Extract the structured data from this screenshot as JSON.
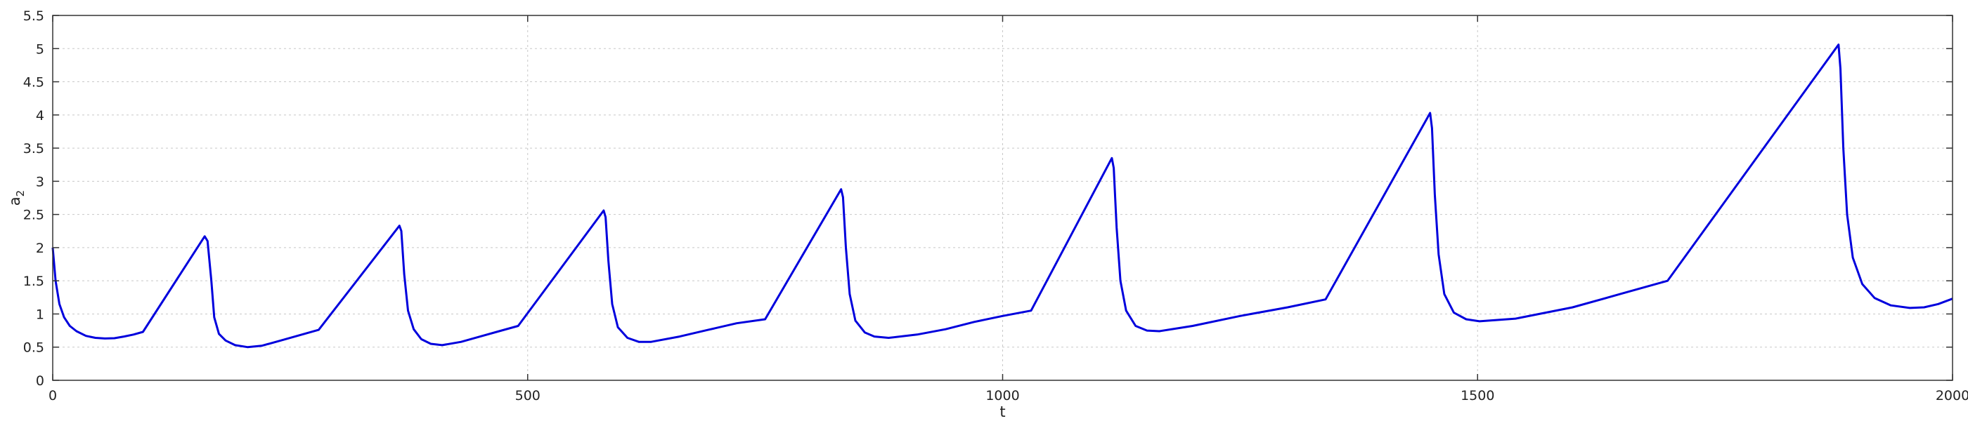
{
  "chart_data": {
    "type": "line",
    "title": "",
    "xlabel": "t",
    "ylabel_base": "a",
    "ylabel_sub": "2",
    "xlim": [
      0,
      2000
    ],
    "ylim": [
      0,
      5.5
    ],
    "x_ticks": [
      0,
      500,
      1000,
      1500,
      2000
    ],
    "x_tick_labels": [
      "0",
      "500",
      "1000",
      "1500",
      "2000"
    ],
    "y_ticks": [
      0,
      0.5,
      1,
      1.5,
      2,
      2.5,
      3,
      3.5,
      4,
      4.5,
      5,
      5.5
    ],
    "y_tick_labels": [
      "0",
      "0.5",
      "1",
      "1.5",
      "2",
      "2.5",
      "3",
      "3.5",
      "4",
      "4.5",
      "5",
      "5.5"
    ],
    "grid": true,
    "line_color": "#0000dd",
    "series": [
      {
        "points": [
          [
            0,
            2.0
          ],
          [
            3,
            1.5
          ],
          [
            7,
            1.15
          ],
          [
            12,
            0.95
          ],
          [
            18,
            0.82
          ],
          [
            25,
            0.74
          ],
          [
            35,
            0.67
          ],
          [
            45,
            0.64
          ],
          [
            55,
            0.63
          ],
          [
            65,
            0.635
          ],
          [
            75,
            0.66
          ],
          [
            85,
            0.69
          ],
          [
            95,
            0.73
          ],
          [
            160,
            2.17
          ],
          [
            163,
            2.1
          ],
          [
            167,
            1.5
          ],
          [
            170,
            0.95
          ],
          [
            175,
            0.7
          ],
          [
            182,
            0.6
          ],
          [
            192,
            0.53
          ],
          [
            205,
            0.5
          ],
          [
            220,
            0.52
          ],
          [
            240,
            0.6
          ],
          [
            260,
            0.68
          ],
          [
            280,
            0.76
          ],
          [
            365,
            2.33
          ],
          [
            367,
            2.25
          ],
          [
            370,
            1.6
          ],
          [
            374,
            1.05
          ],
          [
            380,
            0.77
          ],
          [
            388,
            0.62
          ],
          [
            398,
            0.55
          ],
          [
            410,
            0.53
          ],
          [
            430,
            0.58
          ],
          [
            450,
            0.66
          ],
          [
            470,
            0.74
          ],
          [
            490,
            0.82
          ],
          [
            580,
            2.56
          ],
          [
            582,
            2.46
          ],
          [
            585,
            1.8
          ],
          [
            589,
            1.15
          ],
          [
            595,
            0.8
          ],
          [
            605,
            0.64
          ],
          [
            617,
            0.58
          ],
          [
            630,
            0.58
          ],
          [
            660,
            0.66
          ],
          [
            690,
            0.76
          ],
          [
            720,
            0.86
          ],
          [
            750,
            0.92
          ],
          [
            830,
            2.88
          ],
          [
            832,
            2.76
          ],
          [
            835,
            2.0
          ],
          [
            839,
            1.3
          ],
          [
            845,
            0.9
          ],
          [
            855,
            0.72
          ],
          [
            865,
            0.66
          ],
          [
            880,
            0.64
          ],
          [
            910,
            0.69
          ],
          [
            940,
            0.77
          ],
          [
            970,
            0.88
          ],
          [
            1000,
            0.97
          ],
          [
            1030,
            1.05
          ],
          [
            1115,
            3.35
          ],
          [
            1117,
            3.2
          ],
          [
            1120,
            2.3
          ],
          [
            1124,
            1.5
          ],
          [
            1130,
            1.05
          ],
          [
            1140,
            0.82
          ],
          [
            1152,
            0.75
          ],
          [
            1165,
            0.74
          ],
          [
            1200,
            0.82
          ],
          [
            1250,
            0.97
          ],
          [
            1300,
            1.1
          ],
          [
            1340,
            1.22
          ],
          [
            1450,
            4.03
          ],
          [
            1452,
            3.8
          ],
          [
            1455,
            2.8
          ],
          [
            1459,
            1.9
          ],
          [
            1465,
            1.3
          ],
          [
            1475,
            1.02
          ],
          [
            1488,
            0.92
          ],
          [
            1502,
            0.89
          ],
          [
            1540,
            0.93
          ],
          [
            1600,
            1.1
          ],
          [
            1650,
            1.3
          ],
          [
            1700,
            1.5
          ],
          [
            1880,
            5.06
          ],
          [
            1882,
            4.7
          ],
          [
            1885,
            3.5
          ],
          [
            1889,
            2.5
          ],
          [
            1895,
            1.85
          ],
          [
            1905,
            1.45
          ],
          [
            1918,
            1.24
          ],
          [
            1935,
            1.13
          ],
          [
            1955,
            1.09
          ],
          [
            1970,
            1.1
          ],
          [
            1985,
            1.15
          ],
          [
            2000,
            1.23
          ]
        ]
      }
    ]
  }
}
